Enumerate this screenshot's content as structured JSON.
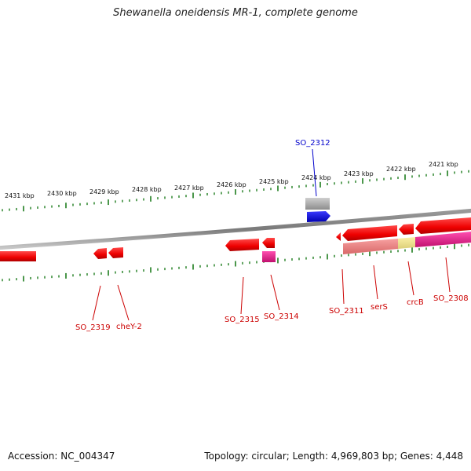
{
  "title": "Shewanella oneidensis MR-1, complete genome",
  "footer": {
    "accession": "Accession: NC_004347",
    "topology": "Topology: circular; Length: 4,969,803 bp; Genes: 4,448"
  },
  "ticks": {
    "labels": [
      "2431 kbp",
      "2430 kbp",
      "2429 kbp",
      "2428 kbp",
      "2427 kbp",
      "2426 kbp",
      "2425 kbp",
      "2424 kbp",
      "2423 kbp",
      "2422 kbp",
      "2421 kbp"
    ]
  },
  "gene_labels": {
    "so_2312": "SO_2312",
    "so_2319": "SO_2319",
    "chey_2": "cheY-2",
    "so_2315": "SO_2315",
    "so_2314": "SO_2314",
    "so_2311": "SO_2311",
    "sers": "serS",
    "crcb": "crcB",
    "so_2308": "SO_2308"
  },
  "colors": {
    "gene_forward": "#ff0000",
    "gene_blue": "#0000ff",
    "gene_gray": "#a9a9a9",
    "magenta": "#ee1f8f",
    "pink": "#f08080",
    "yellow": "#f0e68c",
    "tick": "#1e7d1e",
    "label_red": "#cc0000",
    "label_blue": "#0000cc"
  }
}
